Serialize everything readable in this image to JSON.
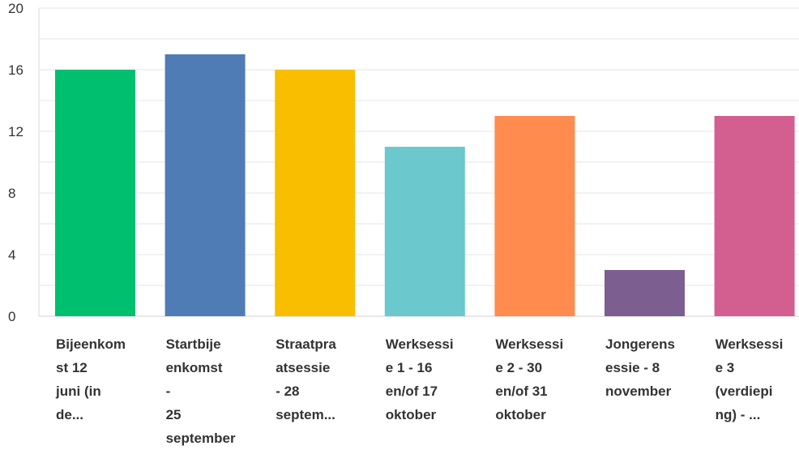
{
  "chart_data": {
    "type": "bar",
    "title": "",
    "xlabel": "",
    "ylabel": "",
    "ylim": [
      0,
      20
    ],
    "yticks": [
      "0",
      "4",
      "8",
      "12",
      "16",
      "20"
    ],
    "grid": true,
    "categories": [
      "Bijeenkom\nst 12\njuni (in\nde...",
      "Startbije\nenkomst\n-\n25\nseptember",
      "Straatpra\natsessie\n- 28\nseptem...",
      "Werksessi\ne 1 - 16\nen/of 17\noktober",
      "Werksessi\ne 2 - 30\nen/of 31\noktober",
      "Jongerens\nessie - 8\nnovember",
      "Werksessi\ne 3\n(verdiepi\nng) - ..."
    ],
    "values": [
      16,
      17,
      16,
      11,
      13,
      3,
      13
    ],
    "colors": [
      "#00bf6f",
      "#507cb6",
      "#f9be00",
      "#6bc8cd",
      "#ff8b4f",
      "#7d5e90",
      "#d25f90"
    ]
  }
}
